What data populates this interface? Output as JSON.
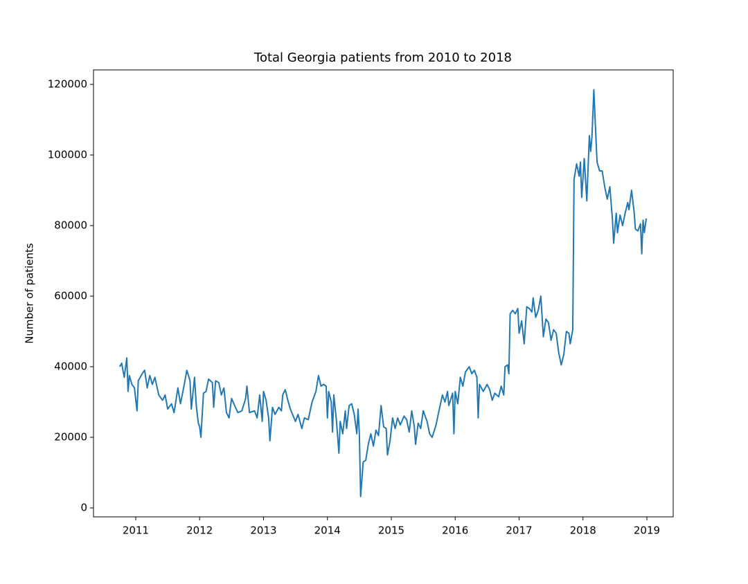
{
  "chart_data": {
    "type": "line",
    "title": "Total Georgia patients from 2010 to 2018",
    "ylabel": "Number of patients",
    "color": "#1f77b4",
    "grid": false,
    "xlim": [
      2010.339,
      2019.412
    ],
    "xticks": [
      2011,
      2012,
      2013,
      2014,
      2015,
      2016,
      2017,
      2018,
      2019
    ],
    "ylim": [
      -2549,
      124118
    ],
    "yticks": [
      0,
      20000,
      40000,
      60000,
      80000,
      100000,
      120000
    ],
    "x": [
      2010.75,
      2010.78,
      2010.82,
      2010.86,
      2010.88,
      2010.9,
      2010.94,
      2010.98,
      2011.02,
      2011.04,
      2011.1,
      2011.14,
      2011.18,
      2011.22,
      2011.26,
      2011.3,
      2011.36,
      2011.42,
      2011.46,
      2011.5,
      2011.56,
      2011.6,
      2011.66,
      2011.7,
      2011.76,
      2011.8,
      2011.85,
      2011.87,
      2011.92,
      2011.95,
      2011.98,
      2012.0,
      2012.02,
      2012.06,
      2012.1,
      2012.14,
      2012.2,
      2012.22,
      2012.25,
      2012.3,
      2012.34,
      2012.38,
      2012.42,
      2012.46,
      2012.5,
      2012.56,
      2012.6,
      2012.66,
      2012.72,
      2012.74,
      2012.78,
      2012.86,
      2012.9,
      2012.94,
      2012.98,
      2013.0,
      2013.04,
      2013.08,
      2013.1,
      2013.14,
      2013.18,
      2013.24,
      2013.28,
      2013.3,
      2013.34,
      2013.38,
      2013.42,
      2013.5,
      2013.54,
      2013.6,
      2013.64,
      2013.7,
      2013.76,
      2013.82,
      2013.86,
      2013.9,
      2013.94,
      2013.98,
      2014.0,
      2014.02,
      2014.06,
      2014.08,
      2014.1,
      2014.14,
      2014.18,
      2014.2,
      2014.24,
      2014.28,
      2014.3,
      2014.34,
      2014.38,
      2014.42,
      2014.46,
      2014.48,
      2014.5,
      2014.52,
      2014.56,
      2014.6,
      2014.64,
      2014.68,
      2014.72,
      2014.76,
      2014.8,
      2014.84,
      2014.88,
      2014.92,
      2014.94,
      2014.98,
      2015.02,
      2015.06,
      2015.1,
      2015.14,
      2015.2,
      2015.24,
      2015.28,
      2015.32,
      2015.36,
      2015.38,
      2015.42,
      2015.46,
      2015.5,
      2015.56,
      2015.6,
      2015.64,
      2015.7,
      2015.74,
      2015.8,
      2015.84,
      2015.88,
      2015.9,
      2015.96,
      2015.98,
      2016.0,
      2016.04,
      2016.08,
      2016.12,
      2016.16,
      2016.22,
      2016.26,
      2016.3,
      2016.34,
      2016.36,
      2016.38,
      2016.44,
      2016.5,
      2016.54,
      2016.58,
      2016.62,
      2016.68,
      2016.72,
      2016.76,
      2016.78,
      2016.82,
      2016.84,
      2016.86,
      2016.9,
      2016.94,
      2016.98,
      2017.0,
      2017.04,
      2017.08,
      2017.12,
      2017.16,
      2017.2,
      2017.22,
      2017.26,
      2017.3,
      2017.34,
      2017.38,
      2017.42,
      2017.46,
      2017.5,
      2017.54,
      2017.58,
      2017.62,
      2017.66,
      2017.7,
      2017.74,
      2017.78,
      2017.8,
      2017.84,
      2017.86,
      2017.9,
      2017.94,
      2017.96,
      2017.98,
      2018.02,
      2018.04,
      2018.06,
      2018.08,
      2018.1,
      2018.12,
      2018.14,
      2018.17,
      2018.2,
      2018.22,
      2018.26,
      2018.3,
      2018.34,
      2018.38,
      2018.42,
      2018.46,
      2018.48,
      2018.52,
      2018.54,
      2018.58,
      2018.62,
      2018.66,
      2018.7,
      2018.72,
      2018.76,
      2018.8,
      2018.82,
      2018.86,
      2018.9,
      2018.92,
      2018.94,
      2018.96,
      2018.99
    ],
    "values": [
      40000,
      41000,
      37000,
      42500,
      33000,
      37500,
      35000,
      34000,
      27500,
      36000,
      38000,
      39000,
      34000,
      37500,
      35000,
      37000,
      32000,
      30500,
      32000,
      28000,
      29500,
      27000,
      34000,
      29500,
      35000,
      39000,
      36000,
      28000,
      37000,
      28500,
      24000,
      23000,
      20000,
      32500,
      33000,
      36500,
      35500,
      28500,
      36000,
      35500,
      32000,
      34000,
      27000,
      25500,
      31000,
      28500,
      27000,
      27500,
      31000,
      34500,
      27000,
      27500,
      25500,
      32000,
      24500,
      33000,
      30500,
      25500,
      19000,
      28500,
      26500,
      28500,
      27500,
      32000,
      33500,
      30500,
      28000,
      24500,
      26500,
      22500,
      25500,
      25000,
      30000,
      33000,
      37500,
      34500,
      35000,
      34500,
      25500,
      33000,
      30000,
      21500,
      32000,
      25000,
      15500,
      24500,
      21000,
      27500,
      22500,
      29000,
      29500,
      26500,
      21000,
      28000,
      21000,
      3200,
      13000,
      13500,
      18000,
      21000,
      17500,
      22000,
      20500,
      29000,
      23000,
      22500,
      15000,
      19000,
      25500,
      22500,
      25500,
      23500,
      26000,
      25000,
      21500,
      27500,
      23000,
      18000,
      24000,
      22500,
      27500,
      24500,
      21000,
      20000,
      23500,
      27000,
      32000,
      30000,
      33000,
      29000,
      32500,
      21000,
      33000,
      29500,
      37000,
      34500,
      38500,
      40000,
      38000,
      39000,
      37000,
      25500,
      35000,
      33000,
      35000,
      33500,
      30500,
      32500,
      31500,
      34500,
      32000,
      40000,
      40500,
      38000,
      55000,
      56000,
      55000,
      56500,
      49500,
      53000,
      46500,
      57000,
      56500,
      55500,
      59500,
      54000,
      56000,
      60000,
      48500,
      53500,
      52500,
      47500,
      50500,
      49500,
      44000,
      40500,
      43500,
      50000,
      49500,
      46500,
      50500,
      93000,
      97500,
      94000,
      98000,
      88000,
      99000,
      93000,
      87000,
      96500,
      105500,
      101000,
      105000,
      118500,
      106000,
      98000,
      95500,
      95500,
      91000,
      87500,
      91000,
      82000,
      75000,
      83500,
      78000,
      83000,
      80000,
      83500,
      86500,
      84500,
      90000,
      84000,
      79000,
      78500,
      80500,
      72000,
      81500,
      78000,
      82000
    ]
  }
}
